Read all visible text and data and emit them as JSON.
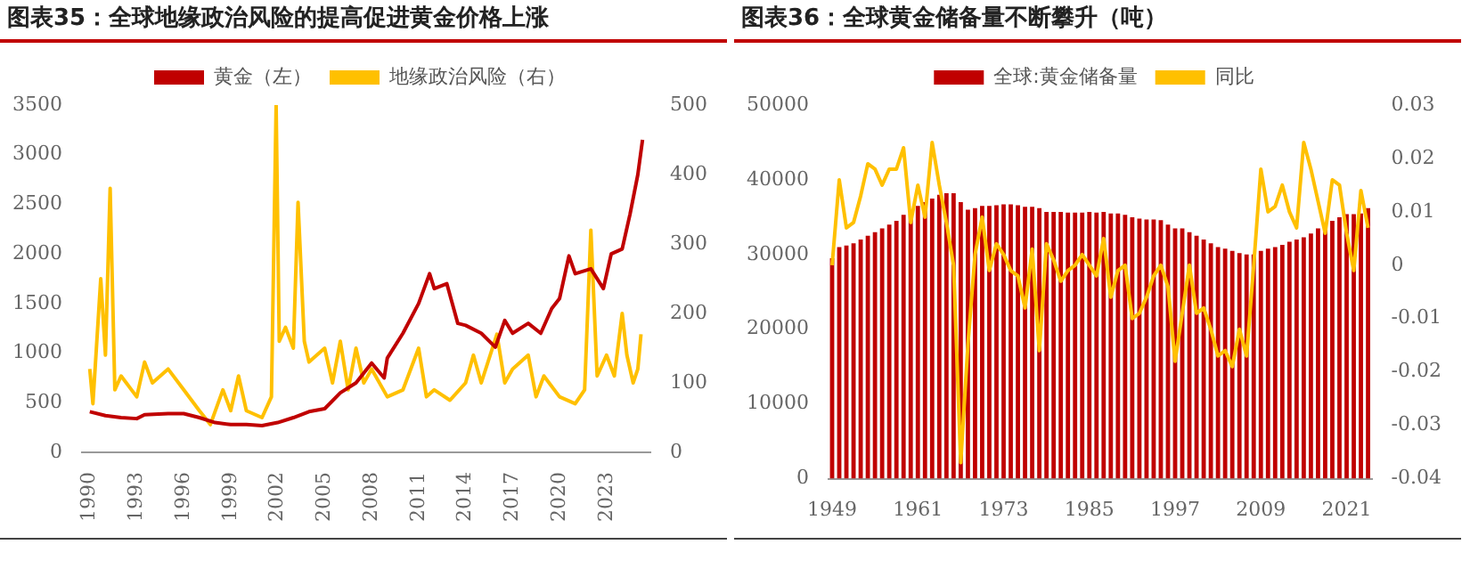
{
  "chart_data": [
    {
      "type": "line",
      "title": "图表35：全球地缘政治风险的提高促进黄金价格上涨",
      "legend": "top",
      "marker": "none",
      "grid": false,
      "xlim": [
        1989.5,
        2025.8
      ],
      "xticks": [
        1990,
        1993,
        1996,
        1999,
        2002,
        2005,
        2008,
        2011,
        2014,
        2017,
        2020,
        2023
      ],
      "ylim": [
        0,
        3500
      ],
      "yticks": [
        0,
        500,
        1000,
        1500,
        2000,
        2500,
        3000,
        3500
      ],
      "y2lim": [
        0,
        500
      ],
      "y2ticks": [
        0,
        100,
        200,
        300,
        400,
        500
      ],
      "series": [
        {
          "name": "黄金（左）",
          "color": "#c00000",
          "x": [
            1990,
            1991,
            1992,
            1993,
            1993.5,
            1995,
            1996,
            1997,
            1998,
            1999,
            2000,
            2001,
            2002,
            2003,
            2004,
            2005,
            2006,
            2007,
            2008,
            2008.8,
            2009,
            2010,
            2011,
            2011.7,
            2012,
            2012.8,
            2013.5,
            2014,
            2015,
            2015.9,
            2016.5,
            2017,
            2018,
            2018.8,
            2019.5,
            2020,
            2020.6,
            2021,
            2022,
            2022.8,
            2023.3,
            2024,
            2024.5,
            2025,
            2025.3
          ],
          "values": [
            410,
            370,
            350,
            340,
            380,
            390,
            390,
            350,
            300,
            280,
            280,
            270,
            300,
            350,
            410,
            440,
            600,
            700,
            900,
            750,
            950,
            1200,
            1500,
            1800,
            1650,
            1700,
            1300,
            1280,
            1200,
            1060,
            1330,
            1200,
            1300,
            1200,
            1450,
            1550,
            1980,
            1800,
            1850,
            1650,
            2000,
            2050,
            2400,
            2800,
            3150
          ]
        },
        {
          "name": "地缘政治风险（右）",
          "color": "#ffc000",
          "axis": "y2",
          "x": [
            1990,
            1990.2,
            1990.7,
            1991,
            1991.3,
            1991.6,
            1992,
            1993,
            1993.5,
            1994,
            1995,
            1996,
            1997,
            1997.7,
            1998.5,
            1999,
            1999.5,
            2000,
            2001,
            2001.6,
            2001.9,
            2002.1,
            2002.5,
            2003,
            2003.3,
            2003.7,
            2004,
            2005,
            2005.5,
            2006,
            2006.5,
            2007,
            2007.5,
            2008,
            2009,
            2010,
            2011,
            2011.5,
            2012,
            2013,
            2014,
            2014.5,
            2015,
            2016,
            2016.5,
            2017,
            2018,
            2018.5,
            2019,
            2020,
            2021,
            2021.6,
            2022,
            2022.4,
            2023,
            2023.5,
            2024,
            2024.3,
            2024.7,
            2025,
            2025.2
          ],
          "values": [
            120,
            70,
            250,
            140,
            380,
            90,
            110,
            80,
            130,
            100,
            120,
            90,
            60,
            40,
            90,
            60,
            110,
            60,
            50,
            80,
            500,
            160,
            180,
            150,
            360,
            160,
            130,
            150,
            100,
            160,
            90,
            150,
            100,
            120,
            80,
            90,
            150,
            80,
            90,
            75,
            100,
            140,
            100,
            170,
            100,
            120,
            140,
            80,
            110,
            80,
            70,
            90,
            320,
            110,
            140,
            110,
            200,
            140,
            100,
            120,
            170
          ]
        }
      ]
    },
    {
      "type": "bar",
      "title": "图表36：全球黄金储备量不断攀升（吨）",
      "legend": "top",
      "marker": "none",
      "grid": false,
      "categories": [
        "1949",
        null,
        null,
        null,
        null,
        null,
        null,
        null,
        null,
        null,
        null,
        null,
        "1961",
        null,
        null,
        null,
        null,
        null,
        null,
        null,
        null,
        null,
        null,
        null,
        "1973",
        null,
        null,
        null,
        null,
        null,
        null,
        null,
        null,
        null,
        null,
        null,
        "1985",
        null,
        null,
        null,
        null,
        null,
        null,
        null,
        null,
        null,
        null,
        null,
        "1997",
        null,
        null,
        null,
        null,
        null,
        null,
        null,
        null,
        null,
        null,
        null,
        "2009",
        null,
        null,
        null,
        null,
        null,
        null,
        null,
        null,
        null,
        null,
        null,
        "2021",
        null,
        null,
        null
      ],
      "ylim": [
        0,
        50000
      ],
      "yticks": [
        0,
        10000,
        20000,
        30000,
        40000,
        50000
      ],
      "y2lim": [
        -0.04,
        0.03
      ],
      "y2ticks": [
        -0.04,
        -0.03,
        -0.02,
        -0.01,
        0,
        0.01,
        0.02,
        0.03
      ],
      "series": [
        {
          "name": "全球:黄金储备量",
          "color": "#c00000",
          "values": [
            29500,
            31000,
            31200,
            31500,
            32000,
            32500,
            33000,
            33500,
            34000,
            34500,
            35300,
            35500,
            36500,
            37000,
            37500,
            38000,
            38200,
            38200,
            37000,
            36000,
            36200,
            36500,
            36500,
            36600,
            36700,
            36700,
            36600,
            36400,
            36400,
            36200,
            35700,
            35700,
            35700,
            35600,
            35600,
            35600,
            35700,
            35600,
            35700,
            35500,
            35500,
            35300,
            35000,
            34800,
            34700,
            34700,
            34600,
            34000,
            33500,
            33500,
            33000,
            32500,
            32000,
            31500,
            31000,
            30800,
            30500,
            30200,
            30000,
            30000,
            30500,
            30800,
            31000,
            31300,
            31700,
            32000,
            32300,
            32800,
            33500,
            34000,
            34500,
            35000,
            35400,
            35400,
            35500,
            36200
          ]
        },
        {
          "name": "同比",
          "type": "line",
          "color": "#ffc000",
          "axis": "y2",
          "values": [
            0.0,
            0.016,
            0.007,
            0.008,
            0.013,
            0.019,
            0.018,
            0.015,
            0.018,
            0.018,
            0.022,
            0.008,
            0.015,
            0.009,
            0.023,
            0.015,
            0.008,
            0.0,
            -0.037,
            -0.015,
            0.002,
            0.009,
            -0.001,
            0.004,
            0.002,
            -0.001,
            -0.002,
            -0.008,
            0.003,
            -0.016,
            0.004,
            0.001,
            -0.003,
            -0.001,
            0.0,
            0.002,
            0.0,
            -0.002,
            0.005,
            -0.006,
            -0.001,
            0.0,
            -0.01,
            -0.009,
            -0.006,
            -0.002,
            0.0,
            -0.004,
            -0.018,
            -0.009,
            0.0,
            -0.009,
            -0.008,
            -0.012,
            -0.017,
            -0.016,
            -0.019,
            -0.012,
            -0.017,
            0.0,
            0.018,
            0.01,
            0.011,
            0.015,
            0.01,
            0.007,
            0.023,
            0.018,
            0.012,
            0.006,
            0.016,
            0.015,
            0.006,
            -0.001,
            0.014,
            0.007
          ]
        }
      ]
    }
  ]
}
